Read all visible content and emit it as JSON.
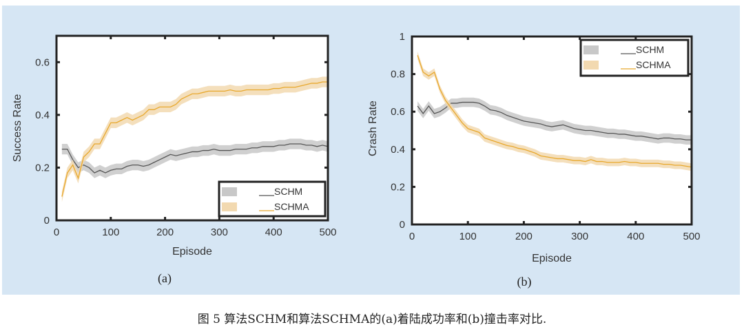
{
  "colors": {
    "panel_bg": "#d6e6f4",
    "schm_line": "#555555",
    "schm_band": "#c8c8c8",
    "schma_line": "#e8a82c",
    "schma_band": "#f2d9b0"
  },
  "caption": "图 5   算法SCHM和算法SCHMA的(a)着陆成功率和(b)撞击率对比.",
  "chart_data": [
    {
      "type": "line",
      "panel_label": "(a)",
      "title": "",
      "xlabel": "Episode",
      "ylabel": "Success Rate",
      "xlim": [
        0,
        500
      ],
      "ylim": [
        0,
        0.7
      ],
      "xticks": [
        0,
        100,
        200,
        300,
        400,
        500
      ],
      "yticks": [
        0,
        0.2,
        0.4,
        0.6
      ],
      "ytick_labels": [
        "0",
        "0.2",
        "0.4",
        "0.6"
      ],
      "legend": {
        "placement": "bottom-right",
        "entries": [
          "SCHM",
          "SCHMA"
        ]
      },
      "x": [
        10,
        20,
        30,
        40,
        50,
        60,
        70,
        80,
        90,
        100,
        110,
        120,
        130,
        140,
        150,
        160,
        170,
        180,
        190,
        200,
        210,
        220,
        230,
        240,
        250,
        260,
        270,
        280,
        290,
        300,
        310,
        320,
        330,
        340,
        350,
        360,
        370,
        380,
        390,
        400,
        410,
        420,
        430,
        440,
        450,
        460,
        470,
        480,
        490,
        500
      ],
      "series": [
        {
          "name": "SCHM",
          "band": 0.02,
          "values": [
            0.27,
            0.27,
            0.23,
            0.2,
            0.21,
            0.2,
            0.18,
            0.19,
            0.18,
            0.19,
            0.195,
            0.195,
            0.205,
            0.21,
            0.21,
            0.205,
            0.21,
            0.22,
            0.23,
            0.24,
            0.25,
            0.245,
            0.25,
            0.255,
            0.26,
            0.26,
            0.265,
            0.265,
            0.27,
            0.265,
            0.265,
            0.265,
            0.27,
            0.27,
            0.27,
            0.275,
            0.275,
            0.28,
            0.28,
            0.28,
            0.285,
            0.285,
            0.29,
            0.29,
            0.29,
            0.285,
            0.285,
            0.28,
            0.285,
            0.28
          ]
        },
        {
          "name": "SCHMA",
          "band": 0.02,
          "values": [
            0.09,
            0.18,
            0.21,
            0.16,
            0.24,
            0.26,
            0.29,
            0.29,
            0.33,
            0.37,
            0.37,
            0.38,
            0.39,
            0.38,
            0.39,
            0.4,
            0.42,
            0.42,
            0.43,
            0.43,
            0.43,
            0.44,
            0.46,
            0.47,
            0.48,
            0.48,
            0.485,
            0.49,
            0.49,
            0.49,
            0.49,
            0.495,
            0.49,
            0.49,
            0.495,
            0.495,
            0.495,
            0.495,
            0.495,
            0.5,
            0.5,
            0.505,
            0.505,
            0.505,
            0.51,
            0.515,
            0.52,
            0.52,
            0.525,
            0.525
          ]
        }
      ]
    },
    {
      "type": "line",
      "panel_label": "(b)",
      "title": "",
      "xlabel": "Episode",
      "ylabel": "Crash Rate",
      "xlim": [
        0,
        500
      ],
      "ylim": [
        0,
        1
      ],
      "xticks": [
        0,
        100,
        200,
        300,
        400,
        500
      ],
      "yticks": [
        0,
        0.2,
        0.4,
        0.6,
        0.8,
        1
      ],
      "ytick_labels": [
        "0",
        "0.2",
        "0.4",
        "0.6",
        "0.8",
        "1"
      ],
      "legend": {
        "placement": "top-right",
        "entries": [
          "SCHM",
          "SCHMA"
        ]
      },
      "x": [
        10,
        20,
        30,
        40,
        50,
        60,
        70,
        80,
        90,
        100,
        110,
        120,
        130,
        140,
        150,
        160,
        170,
        180,
        190,
        200,
        210,
        220,
        230,
        240,
        250,
        260,
        270,
        280,
        290,
        300,
        310,
        320,
        330,
        340,
        350,
        360,
        370,
        380,
        390,
        400,
        410,
        420,
        430,
        440,
        450,
        460,
        470,
        480,
        490,
        500
      ],
      "series": [
        {
          "name": "SCHM",
          "band": 0.025,
          "values": [
            0.63,
            0.59,
            0.63,
            0.59,
            0.6,
            0.62,
            0.645,
            0.645,
            0.65,
            0.65,
            0.65,
            0.645,
            0.63,
            0.61,
            0.605,
            0.595,
            0.58,
            0.57,
            0.56,
            0.55,
            0.545,
            0.54,
            0.535,
            0.525,
            0.52,
            0.525,
            0.53,
            0.52,
            0.51,
            0.505,
            0.5,
            0.5,
            0.495,
            0.49,
            0.485,
            0.485,
            0.48,
            0.48,
            0.475,
            0.47,
            0.47,
            0.465,
            0.46,
            0.455,
            0.46,
            0.46,
            0.455,
            0.455,
            0.45,
            0.45
          ]
        },
        {
          "name": "SCHMA",
          "band": 0.02,
          "values": [
            0.9,
            0.81,
            0.79,
            0.81,
            0.72,
            0.66,
            0.62,
            0.58,
            0.54,
            0.51,
            0.5,
            0.49,
            0.46,
            0.45,
            0.44,
            0.43,
            0.42,
            0.415,
            0.405,
            0.4,
            0.39,
            0.38,
            0.365,
            0.36,
            0.355,
            0.35,
            0.35,
            0.345,
            0.34,
            0.34,
            0.335,
            0.345,
            0.335,
            0.335,
            0.33,
            0.33,
            0.33,
            0.335,
            0.33,
            0.33,
            0.325,
            0.325,
            0.325,
            0.325,
            0.32,
            0.32,
            0.315,
            0.315,
            0.31,
            0.305
          ]
        }
      ]
    }
  ]
}
